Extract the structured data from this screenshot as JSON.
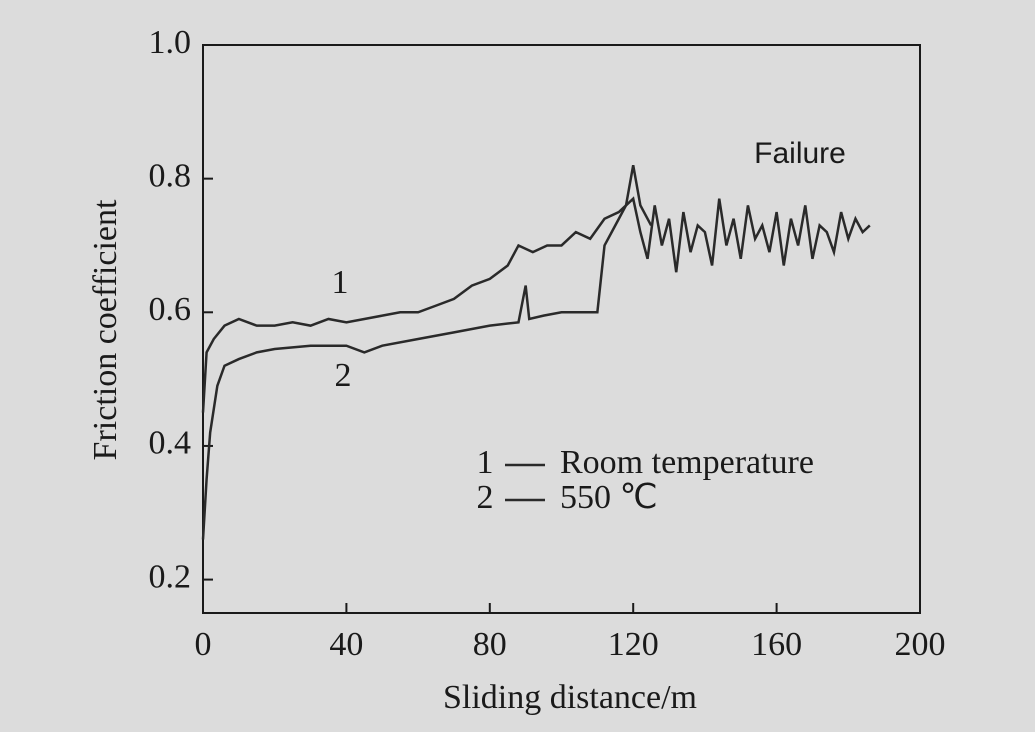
{
  "chart_data": {
    "type": "line",
    "xlabel": "Sliding distance/m",
    "ylabel": "Friction coefficient",
    "annotation": "Failure",
    "xlim": [
      0,
      200
    ],
    "xticks": [
      0,
      40,
      80,
      120,
      160,
      200
    ],
    "ylim": [
      0.15,
      1.0
    ],
    "yticks": [
      0.2,
      0.4,
      0.6,
      0.8,
      {
        "value": 1.0,
        "label": "1.0"
      }
    ],
    "series": [
      {
        "name": "Room temperature",
        "label": "1",
        "color": "#2a2a2a",
        "x": [
          0,
          1,
          3,
          6,
          10,
          15,
          20,
          25,
          30,
          35,
          40,
          45,
          50,
          55,
          60,
          65,
          70,
          75,
          80,
          85,
          88,
          92,
          96,
          100,
          104,
          108,
          112,
          116,
          120,
          122,
          124,
          126,
          128,
          130,
          132,
          134,
          136,
          138,
          140,
          142,
          144,
          146,
          148,
          150,
          152,
          154,
          156,
          158,
          160,
          162,
          164,
          166,
          168,
          170,
          172,
          174,
          176,
          178,
          180,
          182,
          184,
          186
        ],
        "values": [
          0.45,
          0.54,
          0.56,
          0.58,
          0.59,
          0.58,
          0.58,
          0.585,
          0.58,
          0.59,
          0.585,
          0.59,
          0.595,
          0.6,
          0.6,
          0.61,
          0.62,
          0.64,
          0.65,
          0.67,
          0.7,
          0.69,
          0.7,
          0.7,
          0.72,
          0.71,
          0.74,
          0.75,
          0.77,
          0.72,
          0.68,
          0.76,
          0.7,
          0.74,
          0.66,
          0.75,
          0.69,
          0.73,
          0.72,
          0.67,
          0.77,
          0.7,
          0.74,
          0.68,
          0.76,
          0.71,
          0.73,
          0.69,
          0.75,
          0.67,
          0.74,
          0.7,
          0.76,
          0.68,
          0.73,
          0.72,
          0.69,
          0.75,
          0.71,
          0.74,
          0.72,
          0.73
        ]
      },
      {
        "name": "550 ℃",
        "label": "2",
        "color": "#2a2a2a",
        "x": [
          0,
          1,
          2,
          4,
          6,
          10,
          15,
          20,
          30,
          40,
          45,
          50,
          60,
          70,
          80,
          88,
          90,
          91,
          95,
          100,
          105,
          110,
          112,
          114,
          116,
          118,
          120,
          122,
          125
        ],
        "values": [
          0.26,
          0.35,
          0.42,
          0.49,
          0.52,
          0.53,
          0.54,
          0.545,
          0.55,
          0.55,
          0.54,
          0.55,
          0.56,
          0.57,
          0.58,
          0.585,
          0.64,
          0.59,
          0.595,
          0.6,
          0.6,
          0.6,
          0.7,
          0.72,
          0.74,
          0.76,
          0.82,
          0.76,
          0.73
        ]
      }
    ]
  }
}
